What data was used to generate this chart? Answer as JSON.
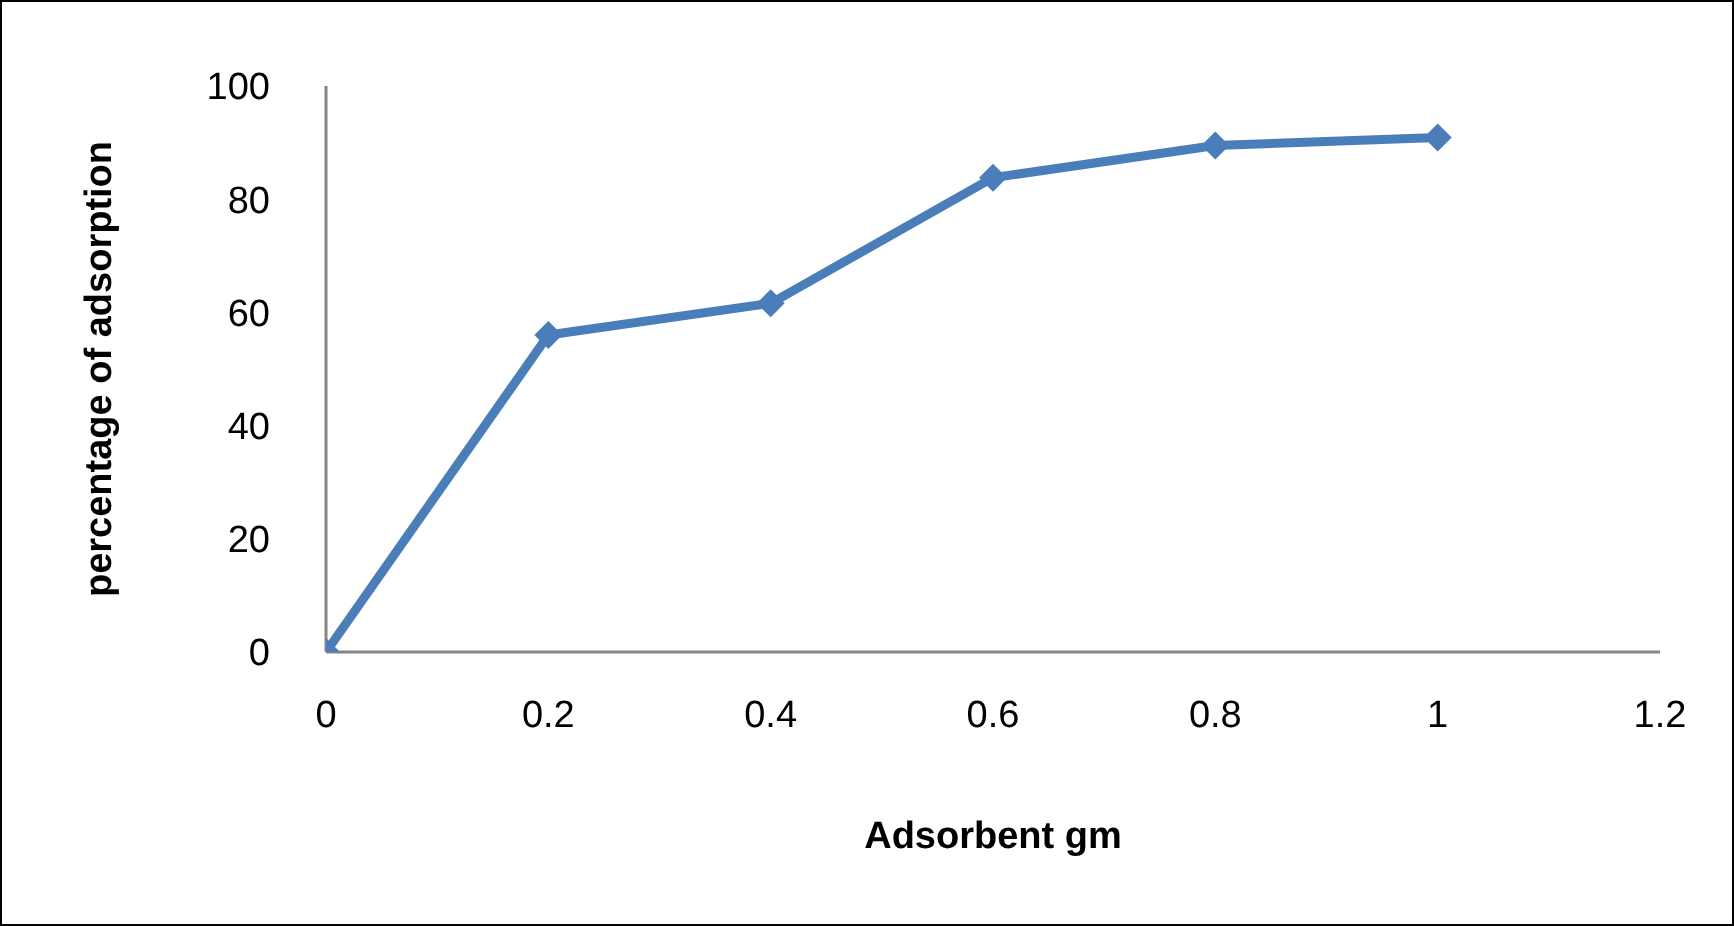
{
  "chart_data": {
    "type": "line",
    "xlabel": "Adsorbent gm",
    "ylabel": "percentage of adsorption",
    "x": [
      0,
      0.2,
      0.4,
      0.6,
      0.8,
      1
    ],
    "series": [
      {
        "color": "#4a7ebb",
        "values": [
          0,
          56,
          61.6,
          83.8,
          89.5,
          90.9
        ]
      }
    ],
    "xlim": [
      0,
      1.2
    ],
    "xticks": [
      0,
      0.2,
      0.4,
      0.6,
      0.8,
      1,
      1.2
    ],
    "ylim": [
      0,
      100
    ],
    "yticks": [
      0,
      20,
      40,
      60,
      80,
      100
    ],
    "grid": false,
    "legend": false,
    "marker": "diamond",
    "line_style": "solid"
  }
}
